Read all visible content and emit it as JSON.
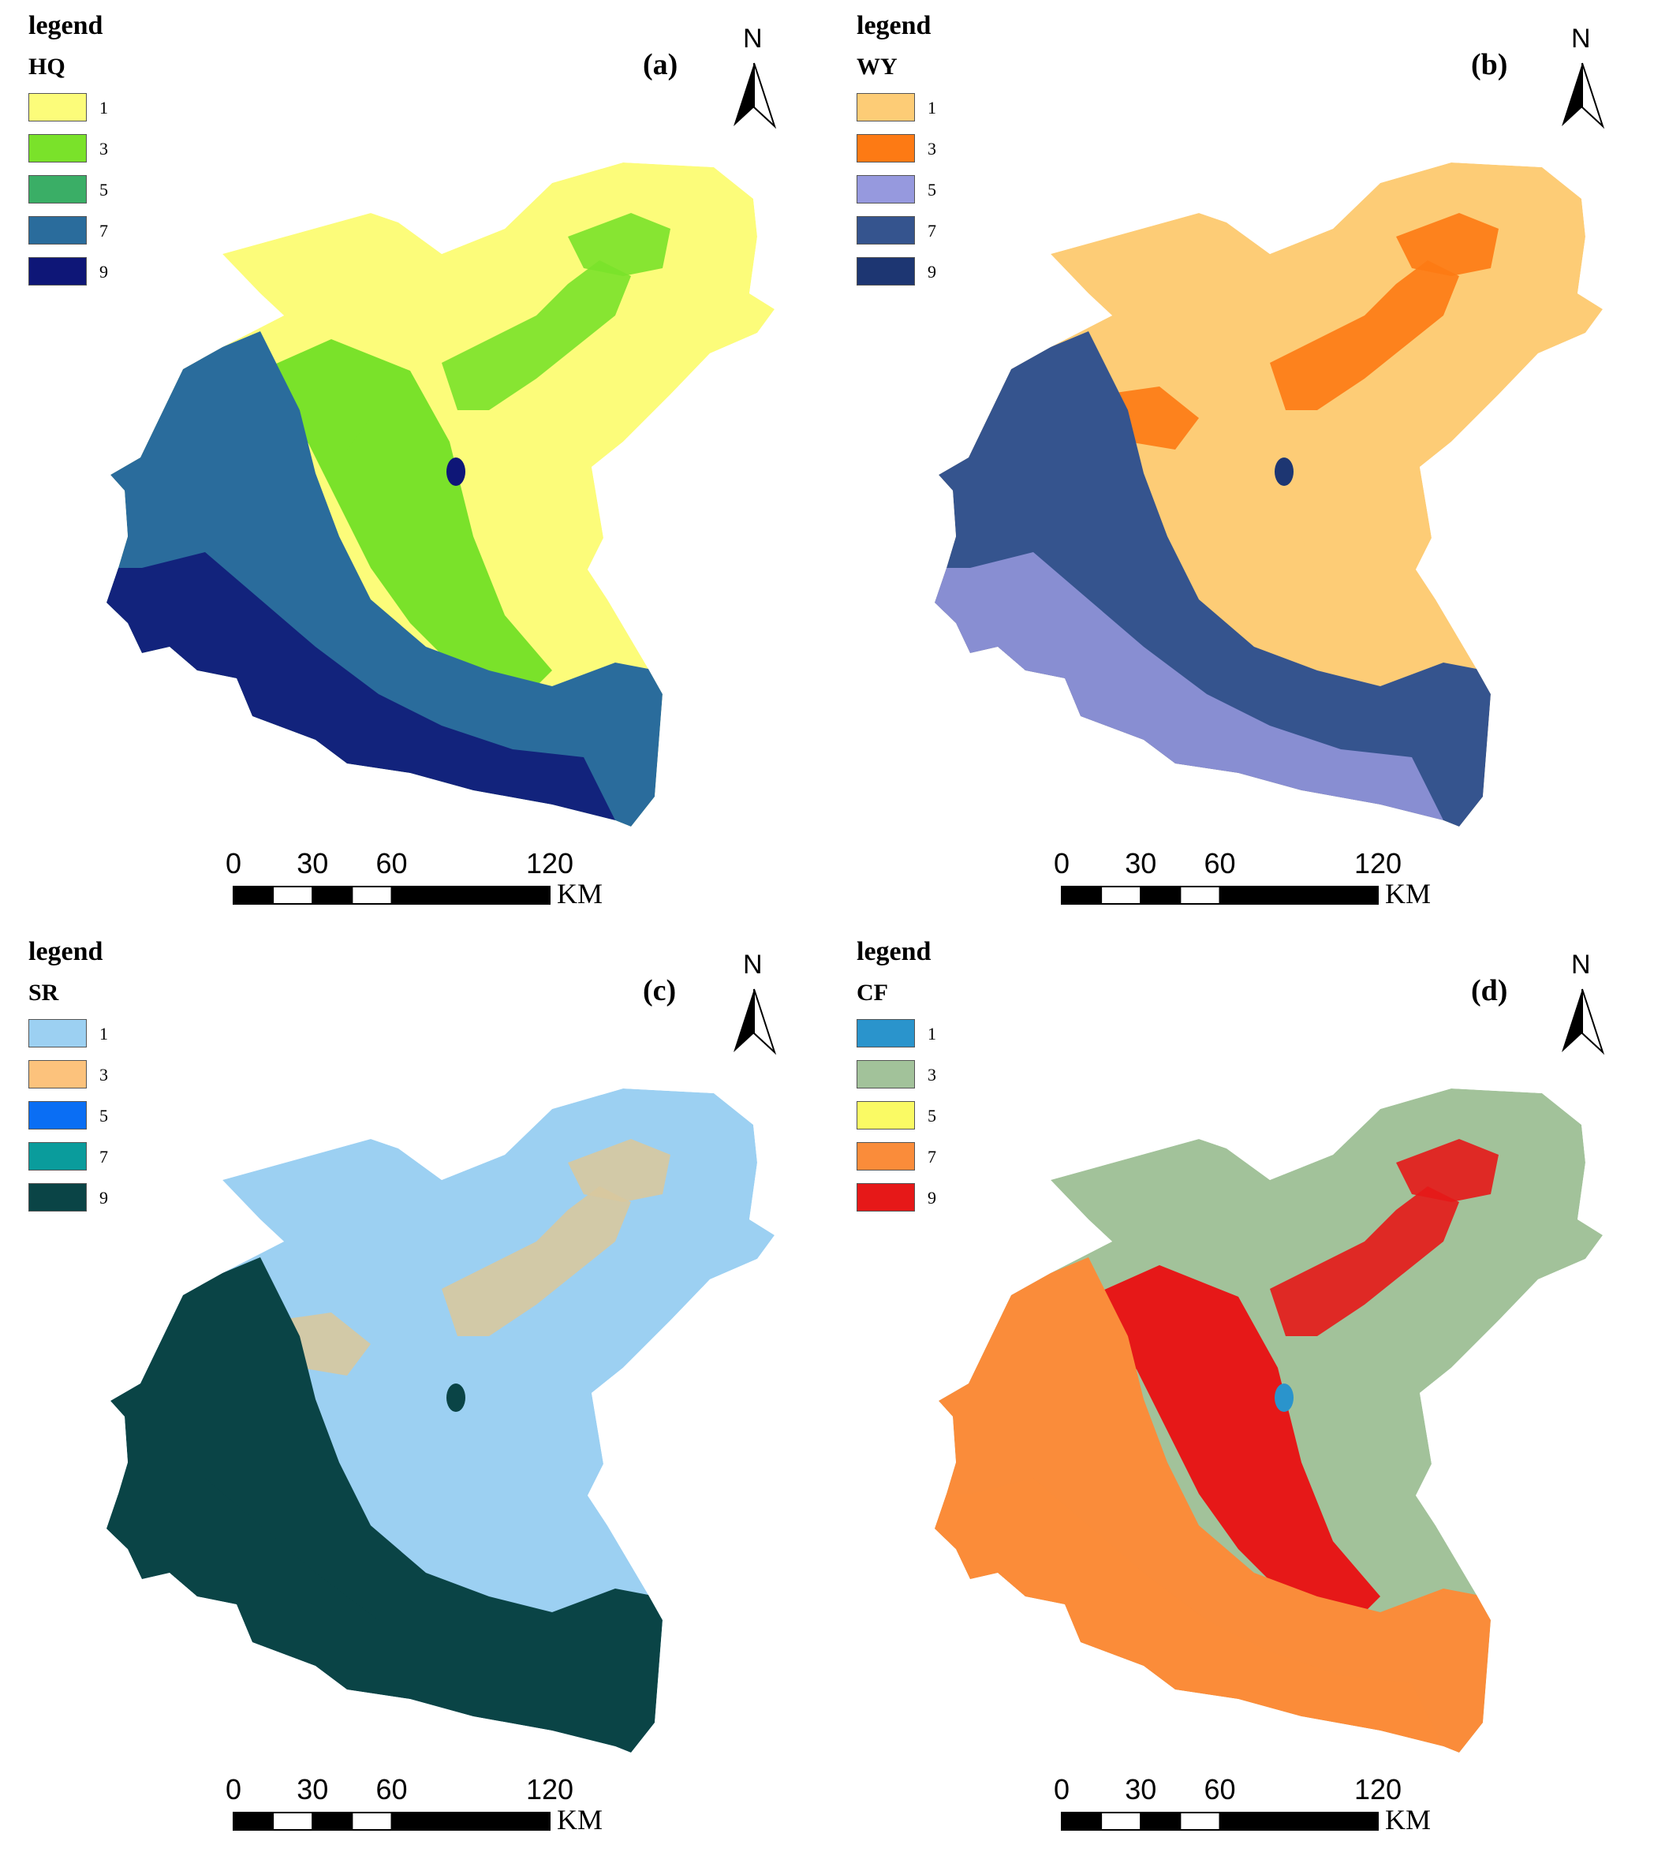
{
  "legend_title": "legend",
  "north_label": "N",
  "scale": {
    "ticks": [
      "0",
      "30",
      "60",
      "120"
    ],
    "unit": "KM"
  },
  "level_labels": [
    "1",
    "3",
    "5",
    "7",
    "9"
  ],
  "panels": [
    {
      "label": "(a)",
      "variable": "HQ",
      "colors": [
        "#fcfc7a",
        "#7ae22a",
        "#3aae66",
        "#2a6c9c",
        "#0e1677"
      ],
      "zone_colors": {
        "north": "#fcfc7a",
        "middle": "#7ae22a",
        "west": "#2a6c9c",
        "south": "#0e1677",
        "patch": "#7ae22a",
        "lake": "#0e1677"
      }
    },
    {
      "label": "(b)",
      "variable": "WY",
      "colors": [
        "#fdcc76",
        "#fd7a14",
        "#9699de",
        "#35548e",
        "#1d3672"
      ],
      "zone_colors": {
        "north": "#fdcc76",
        "middle": "#fdcc76",
        "west": "#35548e",
        "south": "#9699de",
        "patch": "#fd7a14",
        "lake": "#1d3672"
      }
    },
    {
      "label": "(c)",
      "variable": "SR",
      "colors": [
        "#9cd0f2",
        "#fcc27c",
        "#0a6ef4",
        "#0a9c9c",
        "#0a4446"
      ],
      "zone_colors": {
        "north": "#9cd0f2",
        "middle": "#9cd0f2",
        "west": "#0a4446",
        "south": "#0a4446",
        "patch": "#d8c89e",
        "lake": "#0a4446"
      }
    },
    {
      "label": "(d)",
      "variable": "CF",
      "colors": [
        "#2a94cc",
        "#a2c29a",
        "#fafa64",
        "#fa8c3a",
        "#e61818"
      ],
      "zone_colors": {
        "north": "#a2c29a",
        "middle": "#e61818",
        "west": "#fa8c3a",
        "south": "#fa8c3a",
        "patch": "#e61818",
        "lake": "#2a94cc"
      }
    }
  ]
}
